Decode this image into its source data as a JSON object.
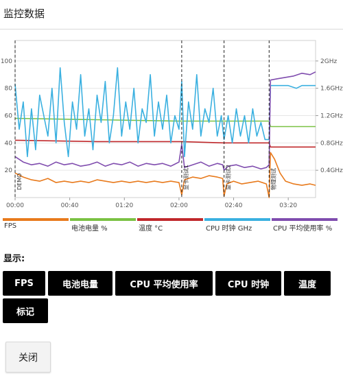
{
  "header": {
    "title": "监控数据"
  },
  "chart_data": {
    "type": "line",
    "x_unit": "mm:ss",
    "x_ticks": [
      "00:00",
      "00:40",
      "01:20",
      "02:00",
      "02:40",
      "03:20"
    ],
    "xlim": [
      0,
      220
    ],
    "left_axis": {
      "ticks": [
        "20",
        "40",
        "60",
        "80",
        "100"
      ],
      "ylim": [
        0,
        115
      ]
    },
    "right_axis": {
      "ticks": [
        "0.4GHz",
        "0.8GHz",
        "1.2GHz",
        "1.6GHz",
        "2GHz"
      ],
      "ylim": [
        0,
        2.3
      ]
    },
    "markers": [
      {
        "x": 0,
        "label": "DEMO"
      },
      {
        "x": 122,
        "label": "显卡测试1"
      },
      {
        "x": 153,
        "label": "显卡测试2"
      },
      {
        "x": 186,
        "label": "物理测试"
      }
    ],
    "series": [
      {
        "name": "FPS",
        "color": "#e87a1c",
        "points": [
          [
            0,
            18
          ],
          [
            6,
            15
          ],
          [
            12,
            13
          ],
          [
            18,
            12
          ],
          [
            24,
            14
          ],
          [
            30,
            11
          ],
          [
            36,
            12
          ],
          [
            42,
            11
          ],
          [
            48,
            12
          ],
          [
            54,
            11
          ],
          [
            60,
            13
          ],
          [
            66,
            12
          ],
          [
            72,
            11
          ],
          [
            78,
            12
          ],
          [
            84,
            11
          ],
          [
            90,
            12
          ],
          [
            96,
            11
          ],
          [
            102,
            12
          ],
          [
            108,
            11
          ],
          [
            114,
            12
          ],
          [
            120,
            11
          ],
          [
            122,
            2
          ],
          [
            124,
            13
          ],
          [
            130,
            15
          ],
          [
            136,
            14
          ],
          [
            142,
            16
          ],
          [
            148,
            15
          ],
          [
            152,
            14
          ],
          [
            153,
            1
          ],
          [
            155,
            10
          ],
          [
            160,
            12
          ],
          [
            166,
            10
          ],
          [
            172,
            11
          ],
          [
            178,
            12
          ],
          [
            184,
            10
          ],
          [
            186,
            0
          ],
          [
            187,
            33
          ],
          [
            190,
            28
          ],
          [
            194,
            18
          ],
          [
            198,
            12
          ],
          [
            204,
            10
          ],
          [
            210,
            9
          ],
          [
            216,
            10
          ],
          [
            220,
            9
          ]
        ]
      },
      {
        "name": "电池电量 %",
        "color": "#7ac143",
        "points": [
          [
            0,
            58
          ],
          [
            60,
            57
          ],
          [
            120,
            56
          ],
          [
            186,
            56
          ],
          [
            187,
            52
          ],
          [
            220,
            52
          ]
        ]
      },
      {
        "name": "温度 °C",
        "color": "#c0282b",
        "points": [
          [
            0,
            42
          ],
          [
            60,
            41
          ],
          [
            122,
            41
          ],
          [
            153,
            40
          ],
          [
            186,
            40
          ],
          [
            187,
            37
          ],
          [
            220,
            37
          ]
        ]
      },
      {
        "name": "CPU 时钟 GHz",
        "color": "#3ab0e0",
        "points": [
          [
            0,
            1.66
          ],
          [
            3,
            1.0
          ],
          [
            6,
            1.4
          ],
          [
            9,
            0.6
          ],
          [
            12,
            1.3
          ],
          [
            15,
            0.7
          ],
          [
            18,
            1.5
          ],
          [
            21,
            1.2
          ],
          [
            24,
            0.9
          ],
          [
            27,
            1.6
          ],
          [
            30,
            0.8
          ],
          [
            33,
            1.9
          ],
          [
            36,
            1.1
          ],
          [
            39,
            0.6
          ],
          [
            42,
            1.4
          ],
          [
            45,
            1.0
          ],
          [
            48,
            1.8
          ],
          [
            51,
            0.9
          ],
          [
            54,
            1.3
          ],
          [
            57,
            0.7
          ],
          [
            60,
            1.5
          ],
          [
            63,
            1.1
          ],
          [
            66,
            1.7
          ],
          [
            69,
            0.8
          ],
          [
            72,
            1.2
          ],
          [
            75,
            1.9
          ],
          [
            78,
            0.9
          ],
          [
            81,
            1.4
          ],
          [
            84,
            1.0
          ],
          [
            87,
            1.6
          ],
          [
            90,
            0.8
          ],
          [
            93,
            1.3
          ],
          [
            96,
            1.1
          ],
          [
            99,
            1.8
          ],
          [
            102,
            0.9
          ],
          [
            105,
            1.4
          ],
          [
            108,
            1.0
          ],
          [
            111,
            1.5
          ],
          [
            114,
            0.8
          ],
          [
            117,
            1.2
          ],
          [
            120,
            1.0
          ],
          [
            122,
            1.7
          ],
          [
            124,
            0.6
          ],
          [
            127,
            1.4
          ],
          [
            130,
            1.0
          ],
          [
            133,
            1.8
          ],
          [
            136,
            0.9
          ],
          [
            139,
            1.3
          ],
          [
            142,
            1.1
          ],
          [
            145,
            1.6
          ],
          [
            148,
            0.9
          ],
          [
            151,
            1.2
          ],
          [
            153,
            0.85
          ],
          [
            156,
            1.2
          ],
          [
            159,
            0.8
          ],
          [
            162,
            1.3
          ],
          [
            165,
            0.9
          ],
          [
            168,
            1.2
          ],
          [
            171,
            0.8
          ],
          [
            174,
            1.3
          ],
          [
            177,
            0.9
          ],
          [
            180,
            1.1
          ],
          [
            183,
            0.85
          ],
          [
            186,
            0.85
          ],
          [
            187,
            1.64
          ],
          [
            200,
            1.64
          ],
          [
            206,
            1.6
          ],
          [
            210,
            1.64
          ],
          [
            220,
            1.64
          ]
        ]
      },
      {
        "name": "CPU 平均使用率 %",
        "color": "#7f4cae",
        "points": [
          [
            0,
            30
          ],
          [
            6,
            26
          ],
          [
            12,
            24
          ],
          [
            18,
            25
          ],
          [
            24,
            23
          ],
          [
            30,
            26
          ],
          [
            36,
            24
          ],
          [
            42,
            25
          ],
          [
            48,
            23
          ],
          [
            54,
            24
          ],
          [
            60,
            26
          ],
          [
            66,
            23
          ],
          [
            72,
            25
          ],
          [
            78,
            24
          ],
          [
            84,
            26
          ],
          [
            90,
            23
          ],
          [
            96,
            25
          ],
          [
            102,
            24
          ],
          [
            108,
            25
          ],
          [
            114,
            23
          ],
          [
            120,
            26
          ],
          [
            122,
            39
          ],
          [
            124,
            22
          ],
          [
            130,
            24
          ],
          [
            136,
            26
          ],
          [
            142,
            23
          ],
          [
            148,
            25
          ],
          [
            152,
            24
          ],
          [
            153,
            20
          ],
          [
            156,
            23
          ],
          [
            162,
            24
          ],
          [
            168,
            22
          ],
          [
            174,
            23
          ],
          [
            180,
            21
          ],
          [
            184,
            22
          ],
          [
            186,
            24
          ],
          [
            187,
            86
          ],
          [
            192,
            87
          ],
          [
            198,
            88
          ],
          [
            204,
            89
          ],
          [
            210,
            91
          ],
          [
            216,
            90
          ],
          [
            220,
            92
          ]
        ]
      }
    ]
  },
  "controls": {
    "show_label": "显示:",
    "toggles": [
      "FPS",
      "电池电量",
      "CPU 平均使用率",
      "CPU 时钟",
      "温度",
      "标记"
    ],
    "close_label": "关闭"
  }
}
